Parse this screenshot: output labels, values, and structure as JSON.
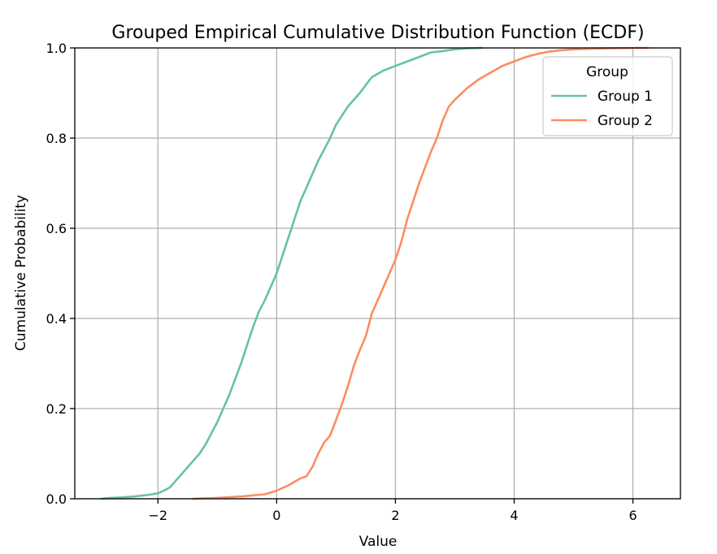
{
  "chart_data": {
    "type": "line",
    "title": "Grouped Empirical Cumulative Distribution Function (ECDF)",
    "xlabel": "Value",
    "ylabel": "Cumulative Probability",
    "xlim": [
      -3.4,
      6.8
    ],
    "ylim": [
      0.0,
      1.0
    ],
    "x_ticks": [
      -2,
      0,
      2,
      4,
      6
    ],
    "x_tick_labels": [
      "−2",
      "0",
      "2",
      "4",
      "6"
    ],
    "y_ticks": [
      0.0,
      0.2,
      0.4,
      0.6,
      0.8,
      1.0
    ],
    "y_tick_labels": [
      "0.0",
      "0.2",
      "0.4",
      "0.6",
      "0.8",
      "1.0"
    ],
    "grid": true,
    "legend": {
      "title": "Group",
      "placement": "top-right"
    },
    "series": [
      {
        "name": "Group 1",
        "color": "#66c2a5",
        "x": [
          -2.95,
          -2.8,
          -2.6,
          -2.4,
          -2.2,
          -2.0,
          -1.9,
          -1.8,
          -1.7,
          -1.6,
          -1.5,
          -1.4,
          -1.3,
          -1.2,
          -1.1,
          -1.0,
          -0.9,
          -0.8,
          -0.7,
          -0.6,
          -0.5,
          -0.4,
          -0.3,
          -0.2,
          -0.1,
          0.0,
          0.1,
          0.2,
          0.3,
          0.4,
          0.5,
          0.6,
          0.7,
          0.8,
          0.9,
          1.0,
          1.2,
          1.4,
          1.6,
          1.8,
          2.0,
          2.2,
          2.4,
          2.6,
          2.8,
          3.0,
          3.2,
          3.45
        ],
        "y": [
          0.0,
          0.002,
          0.003,
          0.005,
          0.008,
          0.012,
          0.018,
          0.025,
          0.04,
          0.055,
          0.07,
          0.085,
          0.1,
          0.12,
          0.145,
          0.17,
          0.2,
          0.23,
          0.265,
          0.3,
          0.34,
          0.38,
          0.415,
          0.44,
          0.47,
          0.5,
          0.54,
          0.58,
          0.62,
          0.66,
          0.69,
          0.72,
          0.75,
          0.775,
          0.8,
          0.83,
          0.87,
          0.9,
          0.935,
          0.95,
          0.96,
          0.97,
          0.98,
          0.99,
          0.993,
          0.997,
          0.999,
          1.0
        ]
      },
      {
        "name": "Group 2",
        "color": "#fc8d62",
        "x": [
          -1.4,
          -1.0,
          -0.6,
          -0.2,
          0.0,
          0.2,
          0.4,
          0.5,
          0.6,
          0.7,
          0.8,
          0.9,
          1.0,
          1.1,
          1.2,
          1.3,
          1.4,
          1.5,
          1.6,
          1.7,
          1.8,
          1.9,
          2.0,
          2.1,
          2.2,
          2.3,
          2.4,
          2.5,
          2.6,
          2.7,
          2.8,
          2.9,
          3.0,
          3.2,
          3.4,
          3.6,
          3.8,
          4.0,
          4.2,
          4.4,
          4.6,
          4.8,
          5.0,
          5.5,
          6.0,
          6.25
        ],
        "y": [
          0.0,
          0.002,
          0.005,
          0.01,
          0.018,
          0.03,
          0.045,
          0.05,
          0.07,
          0.1,
          0.125,
          0.14,
          0.175,
          0.21,
          0.25,
          0.295,
          0.33,
          0.36,
          0.41,
          0.44,
          0.47,
          0.5,
          0.53,
          0.57,
          0.62,
          0.66,
          0.7,
          0.735,
          0.77,
          0.8,
          0.84,
          0.87,
          0.885,
          0.91,
          0.93,
          0.945,
          0.96,
          0.97,
          0.98,
          0.987,
          0.992,
          0.995,
          0.997,
          0.999,
          1.0,
          1.0
        ]
      }
    ]
  }
}
